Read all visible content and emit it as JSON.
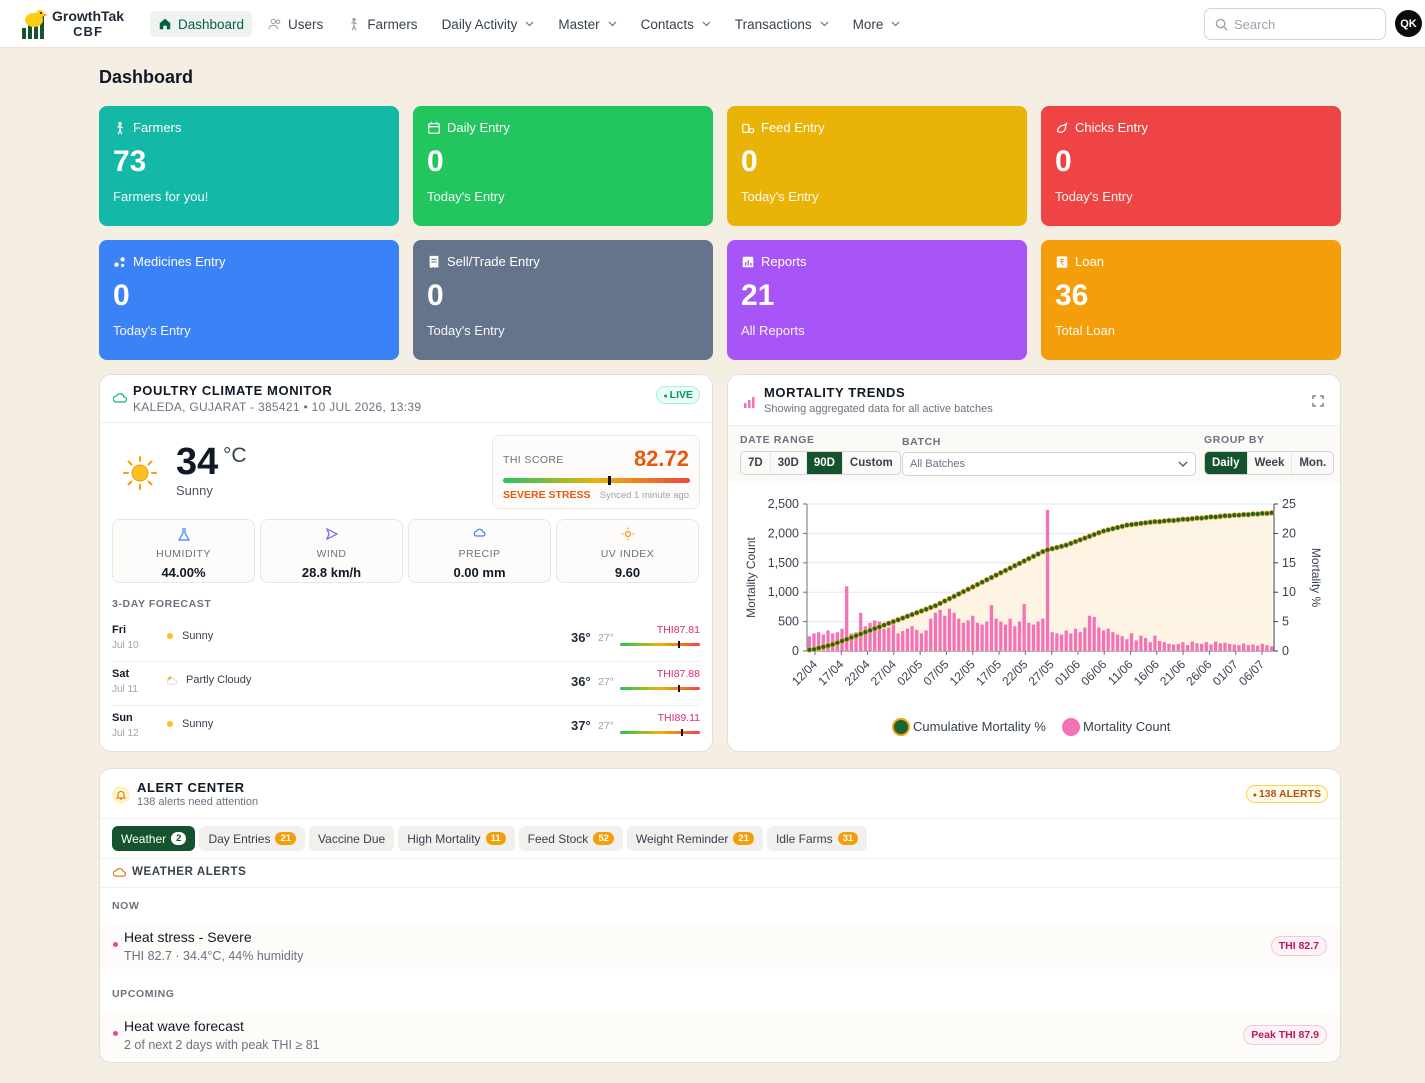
{
  "app": {
    "name_line1": "GrowthTak",
    "name_line2": "CBF"
  },
  "nav": [
    {
      "label": "Dashboard",
      "icon": "home-icon",
      "active": true
    },
    {
      "label": "Users",
      "icon": "users-icon"
    },
    {
      "label": "Farmers",
      "icon": "farmer-icon"
    },
    {
      "label": "Daily Activity",
      "dropdown": true
    },
    {
      "label": "Master",
      "dropdown": true
    },
    {
      "label": "Contacts",
      "dropdown": true
    },
    {
      "label": "Transactions",
      "dropdown": true
    },
    {
      "label": "More",
      "dropdown": true
    }
  ],
  "search": {
    "placeholder": "Search"
  },
  "user": {
    "initials": "QK"
  },
  "page": {
    "title": "Dashboard"
  },
  "cards": [
    {
      "title": "Farmers",
      "value": "73",
      "sub": "Farmers for you!",
      "color": "#14b8a6",
      "icon": "farmer-icon"
    },
    {
      "title": "Daily Entry",
      "value": "0",
      "sub": "Today's Entry",
      "color": "#22c55e",
      "icon": "calendar-icon"
    },
    {
      "title": "Feed Entry",
      "value": "0",
      "sub": "Today's Entry",
      "color": "#eab308",
      "icon": "feed-icon"
    },
    {
      "title": "Chicks Entry",
      "value": "0",
      "sub": "Today's Entry",
      "color": "#ef4444",
      "icon": "chick-icon"
    },
    {
      "title": "Medicines Entry",
      "value": "0",
      "sub": "Today's Entry",
      "color": "#3b82f6",
      "icon": "medicine-icon"
    },
    {
      "title": "Sell/Trade Entry",
      "value": "0",
      "sub": "Today's Entry",
      "color": "#64748b",
      "icon": "receipt-icon"
    },
    {
      "title": "Reports",
      "value": "21",
      "sub": "All Reports",
      "color": "#a855f7",
      "icon": "report-icon"
    },
    {
      "title": "Loan",
      "value": "36",
      "sub": "Total Loan",
      "color": "#f59e0b",
      "icon": "loan-icon"
    }
  ],
  "climate": {
    "title": "POULTRY CLIMATE MONITOR",
    "location": "KALEDA, GUJARAT - 385421 • 10 JUL 2026, 13:39",
    "live": "LIVE",
    "temp": "34",
    "unit": "°C",
    "condition": "Sunny",
    "thi_label": "THI SCORE",
    "thi_value": "82.72",
    "thi_fraction": 0.56,
    "stress": "SEVERE STRESS",
    "synced": "Synced 1 minute ago",
    "metrics": [
      {
        "label": "HUMIDITY",
        "value": "44.00%",
        "icon": "humidity-icon"
      },
      {
        "label": "WIND",
        "value": "28.8 km/h",
        "icon": "wind-icon"
      },
      {
        "label": "PRECIP",
        "value": "0.00 mm",
        "icon": "precip-icon"
      },
      {
        "label": "UV INDEX",
        "value": "9.60",
        "icon": "uv-icon"
      }
    ],
    "forecast_title": "3-DAY FORECAST",
    "forecast": [
      {
        "day": "Fri",
        "date": "Jul 10",
        "cond": "Sunny",
        "hi": "36°",
        "lo": "27°",
        "thi": "THI87.81",
        "frac": 0.72
      },
      {
        "day": "Sat",
        "date": "Jul 11",
        "cond": "Partly Cloudy",
        "hi": "36°",
        "lo": "27°",
        "thi": "THI87.88",
        "frac": 0.72
      },
      {
        "day": "Sun",
        "date": "Jul 12",
        "cond": "Sunny",
        "hi": "37°",
        "lo": "27°",
        "thi": "THI89.11",
        "frac": 0.76
      }
    ]
  },
  "mortality": {
    "title": "MORTALITY TRENDS",
    "subtitle": "Showing aggregated data for all active batches",
    "date_range_label": "DATE RANGE",
    "date_ranges": [
      "7D",
      "30D",
      "90D",
      "Custom"
    ],
    "date_range_selected": "90D",
    "batch_label": "BATCH",
    "batch_value": "All Batches",
    "group_label": "GROUP BY",
    "groups": [
      "Daily",
      "Week",
      "Mon."
    ],
    "group_selected": "Daily"
  },
  "chart_data": {
    "type": "bar",
    "ylabel": "Mortality Count",
    "y2label": "Mortality %",
    "ylim": [
      0,
      2500
    ],
    "y2lim": [
      0,
      25
    ],
    "yticks": [
      "0",
      "500",
      "1,000",
      "1,500",
      "2,000",
      "2,500"
    ],
    "y2ticks": [
      "0",
      "5",
      "10",
      "15",
      "20",
      "25"
    ],
    "xticks": [
      "12/04",
      "17/04",
      "22/04",
      "27/04",
      "02/05",
      "07/05",
      "12/05",
      "17/05",
      "22/05",
      "27/05",
      "01/06",
      "06/06",
      "11/06",
      "16/06",
      "21/06",
      "26/06",
      "01/07",
      "06/07"
    ],
    "legend": [
      "Cumulative Mortality %",
      "Mortality Count"
    ],
    "series": [
      {
        "name": "Mortality Count",
        "color": "#f472b6",
        "values": [
          250,
          300,
          320,
          280,
          350,
          300,
          320,
          380,
          1100,
          300,
          320,
          650,
          420,
          480,
          520,
          500,
          380,
          400,
          450,
          300,
          340,
          380,
          420,
          360,
          300,
          350,
          550,
          650,
          700,
          600,
          720,
          650,
          550,
          480,
          520,
          600,
          480,
          450,
          500,
          780,
          550,
          500,
          450,
          550,
          420,
          500,
          800,
          480,
          450,
          500,
          550,
          2400,
          320,
          300,
          280,
          350,
          300,
          380,
          320,
          400,
          600,
          580,
          400,
          350,
          380,
          320,
          280,
          250,
          200,
          300,
          180,
          260,
          220,
          150,
          260,
          170,
          150,
          120,
          110,
          120,
          150,
          100,
          160,
          130,
          120,
          150,
          110,
          160,
          130,
          140,
          120,
          110,
          100,
          130,
          100,
          110,
          90,
          120,
          100,
          80
        ]
      },
      {
        "name": "Cumulative Mortality %",
        "color": "#166534",
        "values": [
          0.2,
          0.3,
          0.5,
          0.7,
          0.9,
          1.1,
          1.4,
          1.7,
          2.0,
          2.3,
          2.6,
          2.9,
          3.2,
          3.5,
          3.8,
          4.1,
          4.4,
          4.7,
          5.0,
          5.3,
          5.6,
          5.9,
          6.2,
          6.5,
          6.8,
          7.1,
          7.4,
          7.7,
          8.1,
          8.5,
          8.9,
          9.3,
          9.7,
          10.1,
          10.5,
          10.9,
          11.3,
          11.7,
          12.1,
          12.5,
          12.9,
          13.3,
          13.7,
          14.1,
          14.5,
          14.9,
          15.3,
          15.7,
          16.1,
          16.5,
          16.9,
          17.2,
          17.4,
          17.6,
          17.8,
          18.0,
          18.3,
          18.6,
          18.9,
          19.2,
          19.5,
          19.8,
          20.1,
          20.4,
          20.6,
          20.8,
          21.0,
          21.2,
          21.4,
          21.5,
          21.6,
          21.7,
          21.8,
          21.9,
          22.0,
          22.0,
          22.1,
          22.2,
          22.2,
          22.3,
          22.4,
          22.4,
          22.5,
          22.6,
          22.6,
          22.7,
          22.8,
          22.8,
          22.9,
          23.0,
          23.0,
          23.1,
          23.1,
          23.2,
          23.2,
          23.3,
          23.3,
          23.4,
          23.4,
          23.5
        ]
      }
    ]
  },
  "alerts": {
    "title": "ALERT CENTER",
    "subtitle": "138 alerts need attention",
    "count_badge": "138 ALERTS",
    "tabs": [
      {
        "label": "Weather",
        "count": "2",
        "active": true
      },
      {
        "label": "Day Entries",
        "count": "21"
      },
      {
        "label": "Vaccine Due",
        "count": ""
      },
      {
        "label": "High Mortality",
        "count": "11"
      },
      {
        "label": "Feed Stock",
        "count": "52"
      },
      {
        "label": "Weight Reminder",
        "count": "21"
      },
      {
        "label": "Idle Farms",
        "count": "31"
      }
    ],
    "section_title": "WEATHER ALERTS",
    "now_label": "NOW",
    "upcoming_label": "UPCOMING",
    "now": {
      "title": "Heat stress - Severe",
      "detail": "THI 82.7 · 34.4°C, 44% humidity",
      "pill": "THI 82.7"
    },
    "upcoming": {
      "title": "Heat wave forecast",
      "detail": "2 of next 2 days with peak THI ≥ 81",
      "pill": "Peak THI 87.9"
    }
  }
}
